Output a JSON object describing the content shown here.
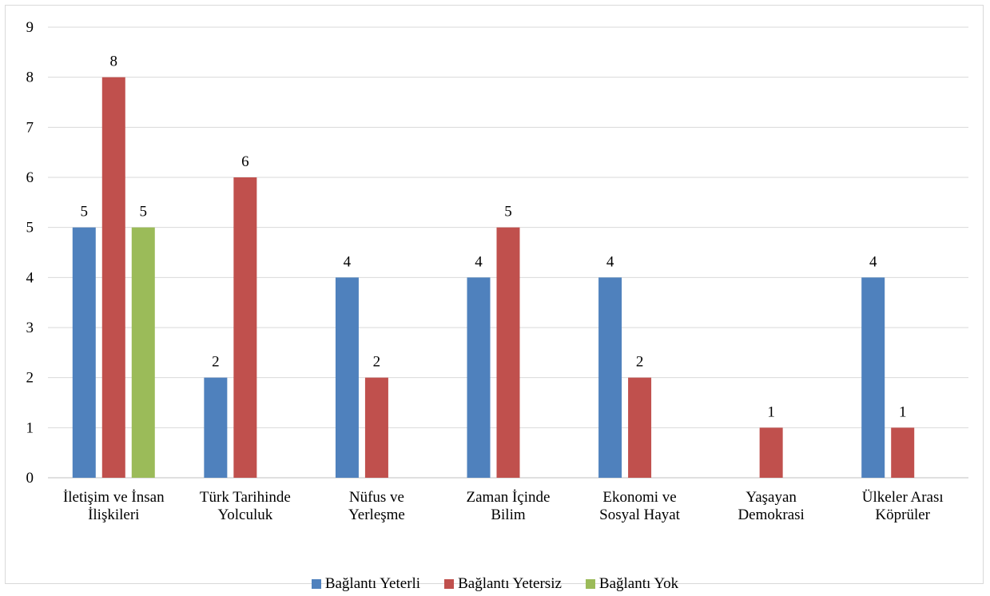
{
  "chart_data": {
    "type": "bar",
    "title": "",
    "xlabel": "",
    "ylabel": "",
    "ylim": [
      0,
      9
    ],
    "yticks": [
      0,
      1,
      2,
      3,
      4,
      5,
      6,
      7,
      8,
      9
    ],
    "grid": true,
    "legend_position": "bottom",
    "categories": [
      [
        "İletişim ve İnsan",
        "İlişkileri"
      ],
      [
        "Türk Tarihinde",
        "Yolculuk"
      ],
      [
        "Nüfus ve",
        "Yerleşme"
      ],
      [
        "Zaman İçinde",
        "Bilim"
      ],
      [
        "Ekonomi ve",
        "Sosyal Hayat"
      ],
      [
        "Yaşayan",
        "Demokrasi"
      ],
      [
        "Ülkeler Arası",
        "Köprüler"
      ]
    ],
    "series": [
      {
        "name": "Bağlantı Yeterli",
        "color": "#4f81bd",
        "values": [
          5,
          2,
          4,
          4,
          4,
          null,
          4
        ]
      },
      {
        "name": "Bağlantı Yetersiz",
        "color": "#c0504d",
        "values": [
          8,
          6,
          2,
          5,
          2,
          1,
          1
        ]
      },
      {
        "name": "Bağlantı Yok",
        "color": "#9bbb59",
        "values": [
          5,
          null,
          null,
          null,
          null,
          null,
          null
        ]
      }
    ]
  }
}
